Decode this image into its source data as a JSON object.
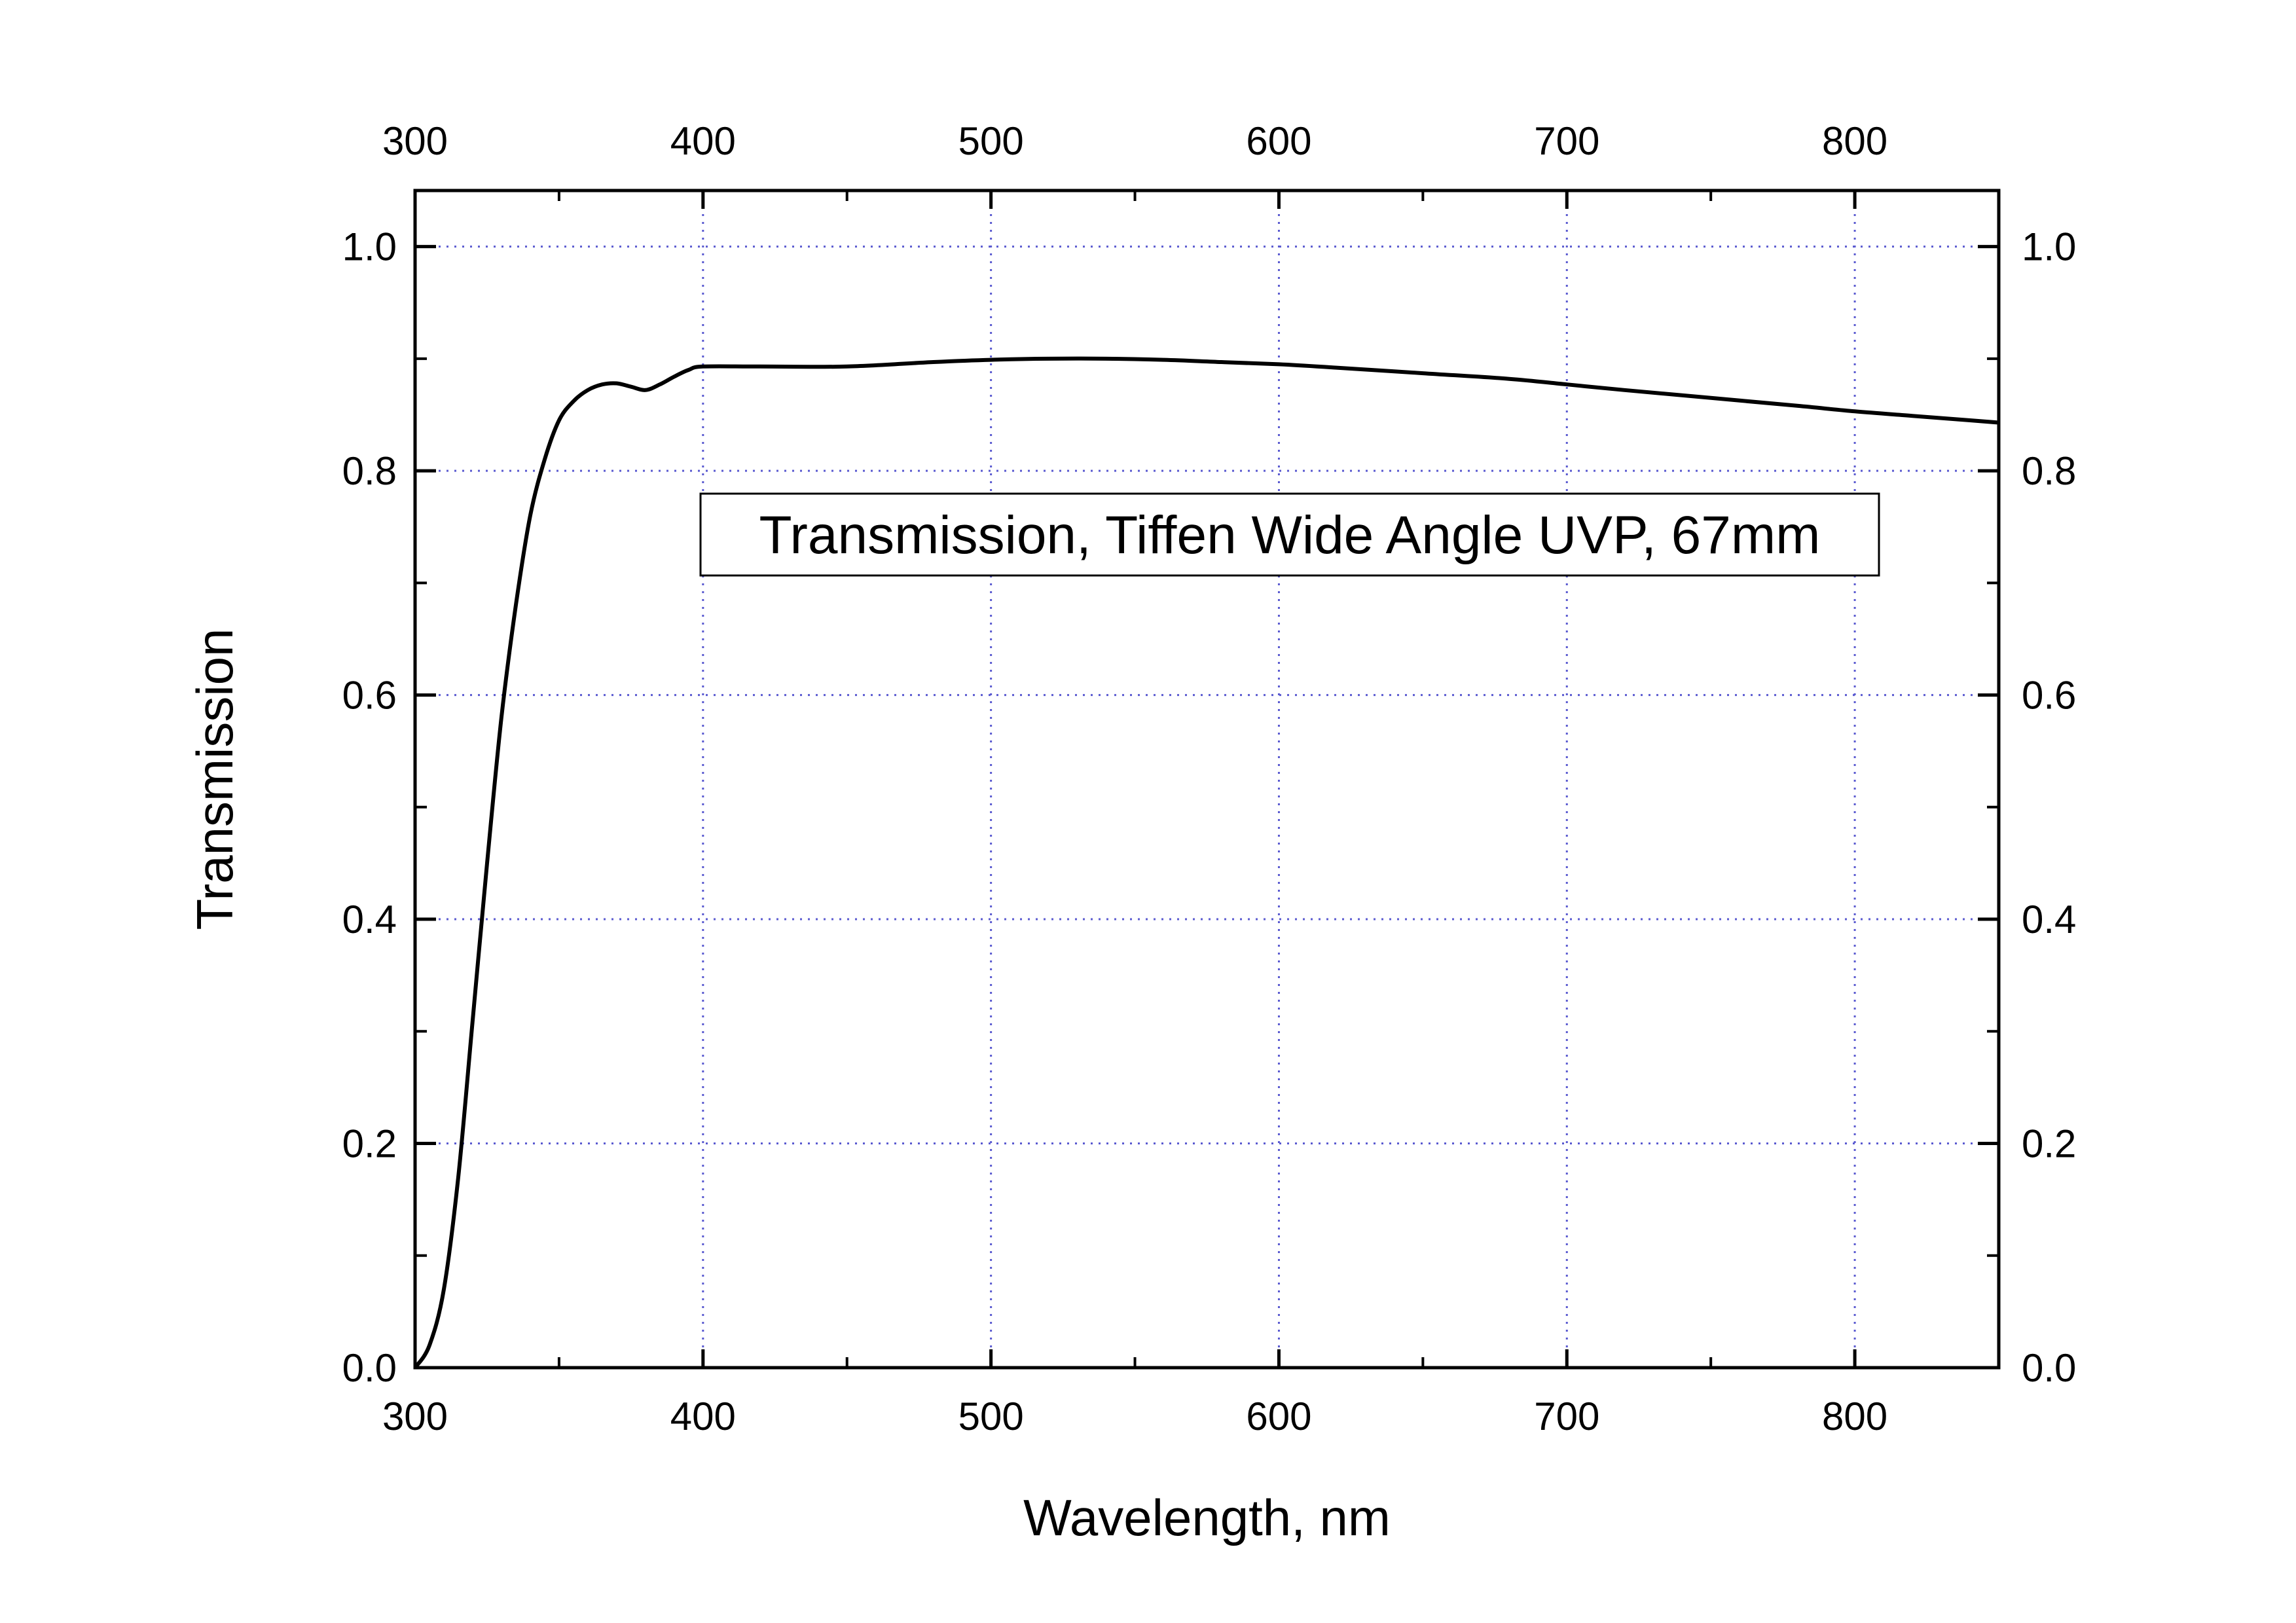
{
  "chart_data": {
    "type": "line",
    "title": "",
    "xlabel": "Wavelength, nm",
    "ylabel": "Transmission",
    "xlim": [
      300,
      850
    ],
    "ylim": [
      0.0,
      1.05
    ],
    "x_ticks": [
      "300",
      "400",
      "500",
      "600",
      "700",
      "800"
    ],
    "x_tick_values": [
      300,
      400,
      500,
      600,
      700,
      800
    ],
    "y_ticks": [
      "0.0",
      "0.2",
      "0.4",
      "0.6",
      "0.8",
      "1.0"
    ],
    "y_tick_values": [
      0.0,
      0.2,
      0.4,
      0.6,
      0.8,
      1.0
    ],
    "grid": true,
    "grid_color": "#5a5ad0",
    "line_color": "#000000",
    "annotation": "Transmission, Tiffen Wide Angle UVP, 67mm",
    "series": [
      {
        "x": [
          300,
          305,
          310,
          315,
          320,
          325,
          330,
          335,
          340,
          345,
          350,
          355,
          360,
          365,
          370,
          375,
          380,
          385,
          390,
          395,
          400,
          420,
          450,
          480,
          500,
          520,
          540,
          560,
          580,
          600,
          620,
          650,
          680,
          700,
          720,
          750,
          780,
          800,
          820,
          840,
          850
        ],
        "y": [
          0.0,
          0.02,
          0.07,
          0.17,
          0.31,
          0.45,
          0.58,
          0.68,
          0.76,
          0.81,
          0.845,
          0.862,
          0.872,
          0.877,
          0.878,
          0.875,
          0.872,
          0.877,
          0.884,
          0.89,
          0.893,
          0.893,
          0.893,
          0.897,
          0.899,
          0.9,
          0.9,
          0.899,
          0.897,
          0.895,
          0.892,
          0.887,
          0.882,
          0.877,
          0.872,
          0.865,
          0.858,
          0.853,
          0.849,
          0.845,
          0.843
        ]
      }
    ]
  }
}
